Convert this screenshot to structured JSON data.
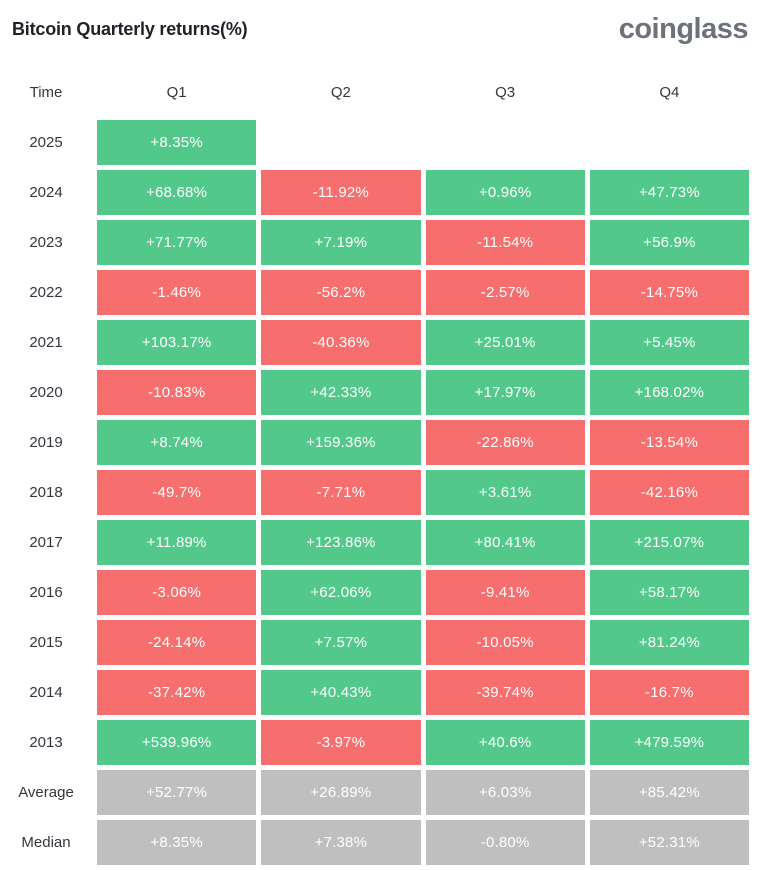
{
  "header": {
    "title": "Bitcoin Quarterly returns(%)",
    "logo_text": "coinglass"
  },
  "chart_data": {
    "type": "table",
    "title": "Bitcoin Quarterly returns(%)",
    "columns": [
      "Time",
      "Q1",
      "Q2",
      "Q3",
      "Q4"
    ],
    "rows": [
      {
        "label": "2025",
        "summary": false,
        "values": [
          "+8.35%",
          "",
          "",
          ""
        ]
      },
      {
        "label": "2024",
        "summary": false,
        "values": [
          "+68.68%",
          "-11.92%",
          "+0.96%",
          "+47.73%"
        ]
      },
      {
        "label": "2023",
        "summary": false,
        "values": [
          "+71.77%",
          "+7.19%",
          "-11.54%",
          "+56.9%"
        ]
      },
      {
        "label": "2022",
        "summary": false,
        "values": [
          "-1.46%",
          "-56.2%",
          "-2.57%",
          "-14.75%"
        ]
      },
      {
        "label": "2021",
        "summary": false,
        "values": [
          "+103.17%",
          "-40.36%",
          "+25.01%",
          "+5.45%"
        ]
      },
      {
        "label": "2020",
        "summary": false,
        "values": [
          "-10.83%",
          "+42.33%",
          "+17.97%",
          "+168.02%"
        ]
      },
      {
        "label": "2019",
        "summary": false,
        "values": [
          "+8.74%",
          "+159.36%",
          "-22.86%",
          "-13.54%"
        ]
      },
      {
        "label": "2018",
        "summary": false,
        "values": [
          "-49.7%",
          "-7.71%",
          "+3.61%",
          "-42.16%"
        ]
      },
      {
        "label": "2017",
        "summary": false,
        "values": [
          "+11.89%",
          "+123.86%",
          "+80.41%",
          "+215.07%"
        ]
      },
      {
        "label": "2016",
        "summary": false,
        "values": [
          "-3.06%",
          "+62.06%",
          "-9.41%",
          "+58.17%"
        ]
      },
      {
        "label": "2015",
        "summary": false,
        "values": [
          "-24.14%",
          "+7.57%",
          "-10.05%",
          "+81.24%"
        ]
      },
      {
        "label": "2014",
        "summary": false,
        "values": [
          "-37.42%",
          "+40.43%",
          "-39.74%",
          "-16.7%"
        ]
      },
      {
        "label": "2013",
        "summary": false,
        "values": [
          "+539.96%",
          "-3.97%",
          "+40.6%",
          "+479.59%"
        ]
      },
      {
        "label": "Average",
        "summary": true,
        "values": [
          "+52.77%",
          "+26.89%",
          "+6.03%",
          "+85.42%"
        ]
      },
      {
        "label": "Median",
        "summary": true,
        "values": [
          "+8.35%",
          "+7.38%",
          "-0.80%",
          "+52.31%"
        ]
      }
    ],
    "colors": {
      "positive": "#52c98b",
      "negative": "#f76e6e",
      "summary": "#bfbfbf",
      "cell_text": "#ffffff",
      "label_text": "#33373d",
      "title_text": "#1e2228",
      "logo_text": "#6c717a"
    },
    "legend_position": "none",
    "grid": false
  }
}
